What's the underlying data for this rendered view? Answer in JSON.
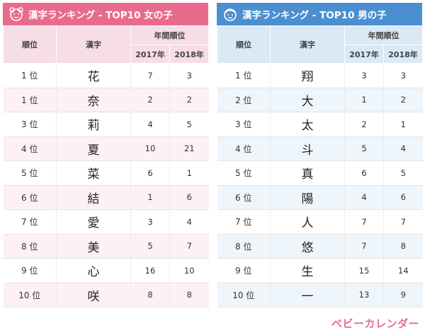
{
  "girls": {
    "title": "漢字ランキング - TOP10 女の子",
    "icon": "girl-face-icon",
    "accent": "#e96b8c",
    "headers": {
      "rank": "順位",
      "kanji": "漢字",
      "year_group": "年間順位",
      "y2017": "2017年",
      "y2018": "2018年"
    },
    "rows": [
      {
        "rank": "1 位",
        "kanji": "花",
        "y2017": "7",
        "y2018": "3"
      },
      {
        "rank": "1 位",
        "kanji": "奈",
        "y2017": "2",
        "y2018": "2"
      },
      {
        "rank": "3 位",
        "kanji": "莉",
        "y2017": "4",
        "y2018": "5"
      },
      {
        "rank": "4 位",
        "kanji": "夏",
        "y2017": "10",
        "y2018": "21"
      },
      {
        "rank": "5 位",
        "kanji": "菜",
        "y2017": "6",
        "y2018": "1"
      },
      {
        "rank": "6 位",
        "kanji": "結",
        "y2017": "1",
        "y2018": "6"
      },
      {
        "rank": "7 位",
        "kanji": "愛",
        "y2017": "3",
        "y2018": "4"
      },
      {
        "rank": "8 位",
        "kanji": "美",
        "y2017": "5",
        "y2018": "7"
      },
      {
        "rank": "9 位",
        "kanji": "心",
        "y2017": "16",
        "y2018": "10"
      },
      {
        "rank": "10 位",
        "kanji": "咲",
        "y2017": "8",
        "y2018": "8"
      }
    ]
  },
  "boys": {
    "title": "漢字ランキング - TOP10 男の子",
    "icon": "boy-face-icon",
    "accent": "#4b8fd0",
    "headers": {
      "rank": "順位",
      "kanji": "漢字",
      "year_group": "年間順位",
      "y2017": "2017年",
      "y2018": "2018年"
    },
    "rows": [
      {
        "rank": "1 位",
        "kanji": "翔",
        "y2017": "3",
        "y2018": "3"
      },
      {
        "rank": "2 位",
        "kanji": "大",
        "y2017": "1",
        "y2018": "2"
      },
      {
        "rank": "3 位",
        "kanji": "太",
        "y2017": "2",
        "y2018": "1"
      },
      {
        "rank": "4 位",
        "kanji": "斗",
        "y2017": "5",
        "y2018": "4"
      },
      {
        "rank": "5 位",
        "kanji": "真",
        "y2017": "6",
        "y2018": "5"
      },
      {
        "rank": "6 位",
        "kanji": "陽",
        "y2017": "4",
        "y2018": "6"
      },
      {
        "rank": "7 位",
        "kanji": "人",
        "y2017": "7",
        "y2018": "7"
      },
      {
        "rank": "8 位",
        "kanji": "悠",
        "y2017": "7",
        "y2018": "8"
      },
      {
        "rank": "9 位",
        "kanji": "生",
        "y2017": "15",
        "y2018": "14"
      },
      {
        "rank": "10 位",
        "kanji": "一",
        "y2017": "13",
        "y2018": "9"
      }
    ]
  },
  "logo": {
    "text": "ベビーカレンダー",
    "color": "#e96b8c"
  }
}
